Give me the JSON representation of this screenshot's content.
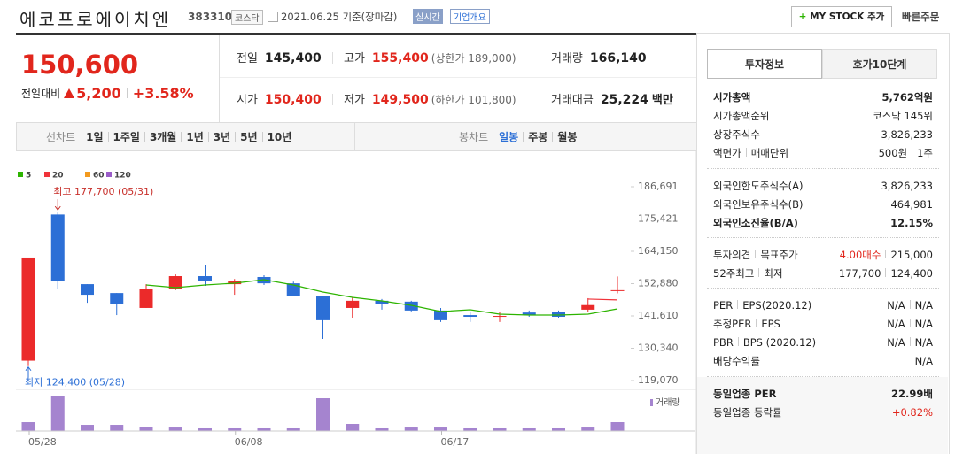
{
  "header": {
    "name": "에코프로에이치엔",
    "code": "383310",
    "market": "코스닥",
    "date": "2021.06.25 기준(장마감)",
    "realtime": "실시간",
    "overview": "기업개요",
    "mystock": "MY STOCK 추가",
    "quick_order": "빠른주문"
  },
  "price": {
    "current": "150,600",
    "change_label": "전일대비",
    "change": "5,200",
    "change_rate": "+3.58%"
  },
  "stats": [
    {
      "label": "전일",
      "value": "145,400"
    },
    {
      "label": "고가",
      "value": "155,400",
      "note": "(상한가 189,000)"
    },
    {
      "label": "거래량",
      "value": "166,140"
    },
    {
      "label": "시가",
      "value": "150,400"
    },
    {
      "label": "저가",
      "value": "149,500",
      "note": "(하한가 101,800)"
    },
    {
      "label": "거래대금",
      "value": "25,224",
      "unit": "백만"
    }
  ],
  "period_tabs": {
    "line_label": "선차트",
    "line": [
      "1일",
      "1주일",
      "3개월",
      "1년",
      "3년",
      "5년",
      "10년"
    ],
    "candle_label": "봉차트",
    "candle": [
      "일봉",
      "주봉",
      "월봉"
    ]
  },
  "chart_data": {
    "type": "candlestick",
    "categories": [
      "05/28",
      null,
      null,
      null,
      null,
      null,
      null,
      "06/08",
      null,
      null,
      null,
      null,
      null,
      null,
      "06/17",
      null,
      null,
      null,
      null,
      null,
      null
    ],
    "open": [
      126000,
      177000,
      152700,
      149600,
      144400,
      150900,
      155500,
      152700,
      155200,
      153000,
      148400,
      144400,
      146900,
      146600,
      143500,
      141900,
      141300,
      142800,
      143100,
      143800,
      150400
    ],
    "high": [
      162000,
      177700,
      152700,
      149600,
      152700,
      156100,
      159200,
      154500,
      155800,
      153600,
      148400,
      148100,
      147500,
      146900,
      144400,
      142800,
      143100,
      143500,
      143500,
      147800,
      155400
    ],
    "low": [
      124400,
      150900,
      146200,
      141900,
      144400,
      150600,
      152100,
      149000,
      152400,
      148700,
      133600,
      141000,
      143800,
      143200,
      139500,
      139500,
      139500,
      141300,
      141000,
      143100,
      149500
    ],
    "close": [
      162000,
      153700,
      149000,
      145900,
      150900,
      155500,
      153900,
      153900,
      153000,
      148700,
      140100,
      146900,
      145900,
      143500,
      140100,
      141300,
      141600,
      141900,
      141300,
      145400,
      150600
    ],
    "up_color": "#eb2a2a",
    "down_color": "#2c6fd6",
    "series": [
      {
        "name": "5",
        "color": "#2db400",
        "values": [
          null,
          null,
          null,
          null,
          152420,
          151500,
          152420,
          153040,
          154270,
          152420,
          149950,
          148100,
          146860,
          145320,
          143160,
          143770,
          142230,
          141920,
          141920,
          142230,
          144080
        ]
      },
      {
        "name": "20",
        "color": "#f0333a",
        "values": [
          null,
          null,
          null,
          null,
          null,
          null,
          null,
          null,
          null,
          null,
          null,
          null,
          null,
          null,
          null,
          null,
          null,
          null,
          null,
          147500,
          147200
        ]
      },
      {
        "name": "60",
        "color": "#f39a1e",
        "values": [
          null,
          null,
          null,
          null,
          null,
          null,
          null,
          null,
          null,
          null,
          null,
          null,
          null,
          null,
          null,
          null,
          null,
          null,
          null,
          null,
          null
        ]
      },
      {
        "name": "120",
        "color": "#9a5cc8",
        "values": [
          null,
          null,
          null,
          null,
          null,
          null,
          null,
          null,
          null,
          null,
          null,
          null,
          null,
          null,
          null,
          null,
          null,
          null,
          null,
          null,
          null
        ]
      }
    ],
    "ylim": [
      119070,
      186691
    ],
    "yticks": [
      {
        "value": 186691,
        "label": "186,691"
      },
      {
        "value": 175421,
        "label": "175,421"
      },
      {
        "value": 164150,
        "label": "164,150"
      },
      {
        "value": 152880,
        "label": "152,880"
      },
      {
        "value": 141610,
        "label": "141,610"
      },
      {
        "value": 130340,
        "label": "130,340"
      },
      {
        "value": 119070,
        "label": "119,070"
      }
    ],
    "annotations": [
      {
        "text": "최고 177,700 (05/31)",
        "color": "#c8302b"
      },
      {
        "text": "최저 124,400 (05/28)",
        "color": "#2c6fd6"
      }
    ],
    "volume_label": "거래량",
    "volume_color": "#a584cf",
    "volume": [
      166000,
      665000,
      116000,
      116000,
      83000,
      66000,
      50000,
      50000,
      50000,
      50000,
      615000,
      133000,
      50000,
      66000,
      66000,
      50000,
      50000,
      50000,
      50000,
      66000,
      166140
    ]
  },
  "side": {
    "tabs": [
      "투자정보",
      "호가10단계"
    ],
    "sections": [
      [
        {
          "label": [
            "시가총액"
          ],
          "value": [
            "5,762억원"
          ],
          "emphasis": true
        },
        {
          "label": [
            "시가총액순위"
          ],
          "value": [
            "코스닥 145위"
          ]
        },
        {
          "label": [
            "상장주식수"
          ],
          "value": [
            "3,826,233"
          ]
        },
        {
          "label": [
            "액면가",
            "매매단위"
          ],
          "value": [
            "500원",
            "1주"
          ]
        }
      ],
      [
        {
          "label": [
            "외국인한도주식수(A)"
          ],
          "value": [
            "3,826,233"
          ]
        },
        {
          "label": [
            "외국인보유주식수(B)"
          ],
          "value": [
            "464,981"
          ]
        },
        {
          "label": [
            "외국인소진율(B/A)"
          ],
          "value": [
            "12.15%"
          ],
          "emphasis": true
        }
      ],
      [
        {
          "label": [
            "투자의견",
            "목표주가"
          ],
          "value": [
            "4.00매수",
            "215,000"
          ],
          "value_color": "#e1261c"
        },
        {
          "label": [
            "52주최고",
            "최저"
          ],
          "value": [
            "177,700",
            "124,400"
          ]
        }
      ],
      [
        {
          "label": [
            "PER",
            "EPS(2020.12)"
          ],
          "value": [
            "N/A",
            "N/A"
          ]
        },
        {
          "label": [
            "추정PER",
            "EPS"
          ],
          "value": [
            "N/A",
            "N/A"
          ]
        },
        {
          "label": [
            "PBR",
            "BPS (2020.12)"
          ],
          "value": [
            "N/A",
            "N/A"
          ]
        },
        {
          "label": [
            "배당수익률"
          ],
          "value": [
            "N/A"
          ]
        }
      ],
      [
        {
          "label": [
            "동일업종 PER"
          ],
          "value": [
            "22.99배"
          ],
          "emphasis": true
        },
        {
          "label": [
            "동일업종 등락률"
          ],
          "value": [
            "+0.82%"
          ],
          "value_color": "#e1261c"
        }
      ]
    ]
  }
}
